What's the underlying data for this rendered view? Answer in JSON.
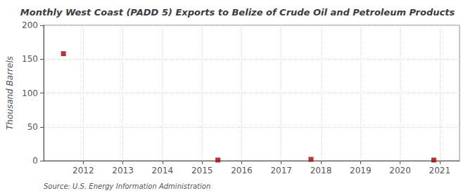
{
  "chart_data": {
    "type": "scatter",
    "title": "Monthly West Coast (PADD 5) Exports to Belize of Crude Oil and Petroleum Products",
    "ylabel": "Thousand Barrels",
    "annotation": "Source: U.S. Energy Information Administration",
    "x": [
      2011.5,
      2015.4,
      2017.75,
      2020.85
    ],
    "values": [
      158,
      1,
      2,
      1
    ],
    "color": "#aa0000",
    "marker": "square",
    "xlim": [
      2011.0,
      2021.5
    ],
    "xticks": [
      2012,
      2013,
      2014,
      2015,
      2016,
      2017,
      2018,
      2019,
      2020,
      2021
    ],
    "ylim": [
      0,
      200
    ],
    "yticks": [
      0,
      50,
      100,
      150,
      200
    ],
    "grid": true
  }
}
